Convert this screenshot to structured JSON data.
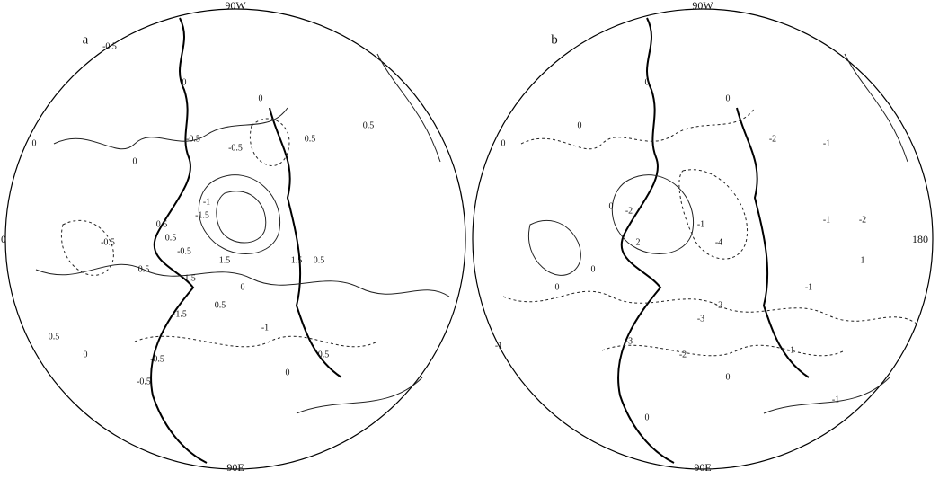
{
  "panels": [
    {
      "label": "a",
      "top": "90W",
      "bottom": "90E",
      "side": "0",
      "contour_labels": [
        "-0.5",
        "0",
        "0",
        "0",
        "-0.5",
        "-0.5",
        "0.5",
        "0.5",
        "0",
        "0.5",
        "-0.5",
        "-1",
        "-1.5",
        "0.5",
        "-0.5",
        "0.5",
        "1.5",
        "-1.5",
        "1.5",
        "-1.5",
        "0.5",
        "-1",
        "0.5",
        "0",
        "0.5",
        "-0.5",
        "0",
        "-0.5",
        "0",
        "0.5"
      ]
    },
    {
      "label": "b",
      "top": "90W",
      "bottom": "90E",
      "side": "180",
      "contour_labels": [
        "0",
        "0",
        "-2",
        "-1",
        "0",
        "0",
        "0",
        "-1",
        "-2",
        "2",
        "0",
        "-1",
        "-4",
        "-2",
        "-1",
        "1",
        "-2",
        "-3",
        "-3",
        "-2",
        "-1",
        "0",
        "-1",
        "-1",
        "0",
        "0"
      ]
    }
  ]
}
